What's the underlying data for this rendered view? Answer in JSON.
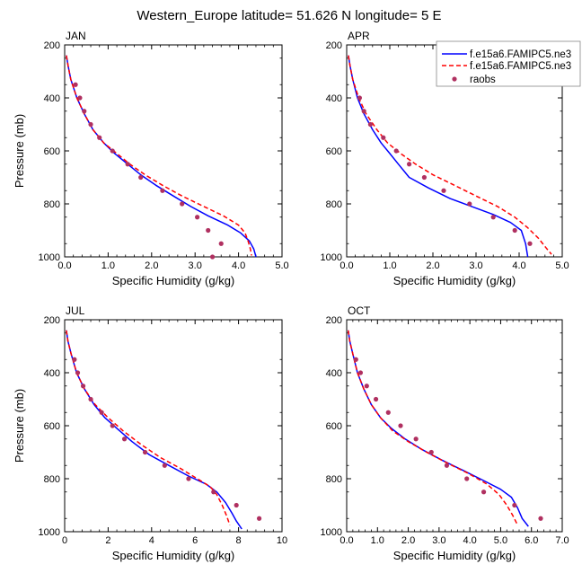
{
  "page": {
    "title": "Western_Europe  latitude= 51.626 N longitude= 5 E"
  },
  "legend": {
    "entries": [
      {
        "label": "f.e15a6.FAMIPC5.ne3",
        "color": "#0000ff",
        "style": "solid"
      },
      {
        "label": "f.e15a6.FAMIPC5.ne3",
        "color": "#ff0000",
        "style": "dashed"
      },
      {
        "label": "raobs",
        "color": "#b03060",
        "style": "marker"
      }
    ]
  },
  "chart_data": [
    {
      "type": "line",
      "panel": "JAN",
      "title": "JAN",
      "xlabel": "Specific Humidity (g/kg)",
      "ylabel": "Pressure (mb)",
      "xlim": [
        0,
        5
      ],
      "xticks": [
        0,
        1,
        2,
        3,
        4,
        5
      ],
      "xtick_labels": [
        "0.0",
        "1.0",
        "2.0",
        "3.0",
        "4.0",
        "5.0"
      ],
      "ylim": [
        1000,
        200
      ],
      "yticks": [
        200,
        400,
        600,
        800,
        1000
      ],
      "ytick_labels": [
        "200",
        "400",
        "600",
        "800",
        "1000"
      ],
      "series": [
        {
          "name": "f.e15a6.FAMIPC5.ne3",
          "color": "#0000ff",
          "style": "solid",
          "x": [
            0.04,
            0.08,
            0.14,
            0.28,
            0.45,
            0.65,
            0.9,
            1.15,
            1.45,
            1.75,
            2.1,
            2.5,
            2.9,
            3.3,
            3.75,
            4.05,
            4.25,
            4.35,
            4.4
          ],
          "y": [
            240,
            280,
            330,
            400,
            460,
            520,
            570,
            610,
            650,
            690,
            730,
            770,
            810,
            845,
            880,
            910,
            940,
            970,
            1000
          ]
        },
        {
          "name": "f.e15a6.FAMIPC5.ne3",
          "color": "#ff0000",
          "style": "dashed",
          "x": [
            0.04,
            0.08,
            0.14,
            0.28,
            0.45,
            0.65,
            0.9,
            1.2,
            1.5,
            1.85,
            2.25,
            2.7,
            3.2,
            3.65,
            4.0,
            4.15,
            4.22,
            4.27,
            4.3
          ],
          "y": [
            240,
            280,
            330,
            400,
            460,
            520,
            570,
            610,
            650,
            690,
            730,
            770,
            810,
            845,
            880,
            910,
            940,
            970,
            995
          ]
        },
        {
          "name": "raobs",
          "color": "#b03060",
          "style": "marker",
          "x": [
            0.25,
            0.35,
            0.45,
            0.6,
            0.8,
            1.1,
            1.45,
            1.75,
            2.25,
            2.7,
            3.05,
            3.3,
            3.6,
            3.4
          ],
          "y": [
            350,
            400,
            450,
            500,
            550,
            600,
            650,
            700,
            750,
            800,
            850,
            900,
            950,
            1000
          ]
        }
      ]
    },
    {
      "type": "line",
      "panel": "APR",
      "title": "APR",
      "xlabel": "Specific Humidity (g/kg)",
      "ylabel": "",
      "xlim": [
        0,
        5
      ],
      "xticks": [
        0,
        1,
        2,
        3,
        4,
        5
      ],
      "xtick_labels": [
        "0.0",
        "1.0",
        "2.0",
        "3.0",
        "4.0",
        "5.0"
      ],
      "ylim": [
        1000,
        200
      ],
      "yticks": [
        200,
        400,
        600,
        800,
        1000
      ],
      "ytick_labels": [
        "200",
        "400",
        "600",
        "800",
        "1000"
      ],
      "series": [
        {
          "name": "f.e15a6.FAMIPC5.ne3",
          "color": "#0000ff",
          "style": "solid",
          "x": [
            0.04,
            0.08,
            0.14,
            0.25,
            0.4,
            0.6,
            0.8,
            1.0,
            1.2,
            1.45,
            1.9,
            2.4,
            2.9,
            3.4,
            3.8,
            4.05,
            4.15,
            4.2
          ],
          "y": [
            240,
            280,
            330,
            400,
            460,
            520,
            570,
            610,
            650,
            700,
            740,
            780,
            810,
            840,
            870,
            900,
            950,
            1000
          ]
        },
        {
          "name": "f.e15a6.FAMIPC5.ne3",
          "color": "#ff0000",
          "style": "dashed",
          "x": [
            0.04,
            0.08,
            0.14,
            0.28,
            0.45,
            0.7,
            0.95,
            1.25,
            1.6,
            2.0,
            2.5,
            3.0,
            3.5,
            3.9,
            4.2,
            4.45,
            4.62,
            4.75
          ],
          "y": [
            240,
            280,
            330,
            400,
            460,
            520,
            570,
            610,
            650,
            690,
            730,
            770,
            810,
            850,
            890,
            930,
            965,
            990
          ]
        },
        {
          "name": "raobs",
          "color": "#b03060",
          "style": "marker",
          "x": [
            0.3,
            0.4,
            0.55,
            0.85,
            1.15,
            1.45,
            1.8,
            2.25,
            2.85,
            3.4,
            3.9,
            4.25
          ],
          "y": [
            400,
            450,
            500,
            550,
            600,
            650,
            700,
            750,
            800,
            850,
            900,
            950
          ]
        }
      ]
    },
    {
      "type": "line",
      "panel": "JUL",
      "title": "JUL",
      "xlabel": "Specific Humidity (g/kg)",
      "ylabel": "Pressure (mb)",
      "xlim": [
        0,
        10
      ],
      "xticks": [
        0,
        2,
        4,
        6,
        8,
        10
      ],
      "xtick_labels": [
        "0",
        "2",
        "4",
        "6",
        "8",
        "10"
      ],
      "ylim": [
        1000,
        200
      ],
      "yticks": [
        200,
        400,
        600,
        800,
        1000
      ],
      "ytick_labels": [
        "200",
        "400",
        "600",
        "800",
        "1000"
      ],
      "series": [
        {
          "name": "f.e15a6.FAMIPC5.ne3",
          "color": "#0000ff",
          "style": "solid",
          "x": [
            0.08,
            0.15,
            0.3,
            0.55,
            0.9,
            1.35,
            1.85,
            2.4,
            3.1,
            3.9,
            4.8,
            5.7,
            6.5,
            7.0,
            7.4,
            7.7,
            7.9,
            8.15
          ],
          "y": [
            240,
            280,
            330,
            400,
            460,
            520,
            570,
            610,
            660,
            710,
            750,
            790,
            820,
            850,
            890,
            930,
            960,
            990
          ]
        },
        {
          "name": "f.e15a6.FAMIPC5.ne3",
          "color": "#ff0000",
          "style": "dashed",
          "x": [
            0.08,
            0.15,
            0.3,
            0.55,
            0.9,
            1.4,
            2.0,
            2.7,
            3.5,
            4.4,
            5.3,
            6.1,
            6.7,
            7.0,
            7.25,
            7.45,
            7.6
          ],
          "y": [
            240,
            280,
            330,
            400,
            460,
            520,
            570,
            620,
            670,
            720,
            760,
            800,
            830,
            860,
            900,
            940,
            975
          ]
        },
        {
          "name": "raobs",
          "color": "#b03060",
          "style": "marker",
          "x": [
            0.45,
            0.6,
            0.85,
            1.2,
            1.7,
            2.2,
            2.75,
            3.7,
            4.6,
            5.7,
            6.85,
            7.9,
            8.95
          ],
          "y": [
            350,
            400,
            450,
            500,
            550,
            600,
            650,
            700,
            750,
            800,
            850,
            900,
            950
          ]
        }
      ]
    },
    {
      "type": "line",
      "panel": "OCT",
      "title": "OCT",
      "xlabel": "Specific Humidity (g/kg)",
      "ylabel": "",
      "xlim": [
        0,
        7
      ],
      "xticks": [
        0,
        1,
        2,
        3,
        4,
        5,
        6,
        7
      ],
      "xtick_labels": [
        "0.0",
        "1.0",
        "2.0",
        "3.0",
        "4.0",
        "5.0",
        "6.0",
        "7.0"
      ],
      "ylim": [
        1000,
        200
      ],
      "yticks": [
        200,
        400,
        600,
        800,
        1000
      ],
      "ytick_labels": [
        "200",
        "400",
        "600",
        "800",
        "1000"
      ],
      "series": [
        {
          "name": "f.e15a6.FAMIPC5.ne3",
          "color": "#0000ff",
          "style": "solid",
          "x": [
            0.05,
            0.1,
            0.2,
            0.35,
            0.55,
            0.8,
            1.1,
            1.45,
            1.9,
            2.45,
            3.1,
            3.8,
            4.5,
            5.0,
            5.35,
            5.55,
            5.7,
            5.9
          ],
          "y": [
            240,
            280,
            330,
            400,
            460,
            520,
            570,
            610,
            650,
            690,
            730,
            770,
            810,
            840,
            870,
            910,
            950,
            980
          ]
        },
        {
          "name": "f.e15a6.FAMIPC5.ne3",
          "color": "#ff0000",
          "style": "dashed",
          "x": [
            0.05,
            0.1,
            0.2,
            0.35,
            0.55,
            0.8,
            1.1,
            1.5,
            2.0,
            2.6,
            3.25,
            3.95,
            4.55,
            4.95,
            5.2,
            5.4,
            5.55
          ],
          "y": [
            240,
            280,
            330,
            400,
            460,
            520,
            570,
            620,
            660,
            700,
            740,
            780,
            820,
            860,
            900,
            940,
            975
          ]
        },
        {
          "name": "raobs",
          "color": "#b03060",
          "style": "marker",
          "x": [
            0.3,
            0.45,
            0.65,
            0.95,
            1.35,
            1.75,
            2.25,
            2.75,
            3.25,
            3.9,
            4.45,
            5.45,
            6.3
          ],
          "y": [
            350,
            400,
            450,
            500,
            550,
            600,
            650,
            700,
            750,
            800,
            850,
            900,
            950
          ]
        }
      ]
    }
  ]
}
